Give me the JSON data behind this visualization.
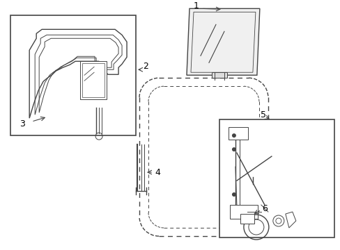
{
  "bg_color": "#ffffff",
  "line_color": "#444444",
  "label_color": "#000000"
}
